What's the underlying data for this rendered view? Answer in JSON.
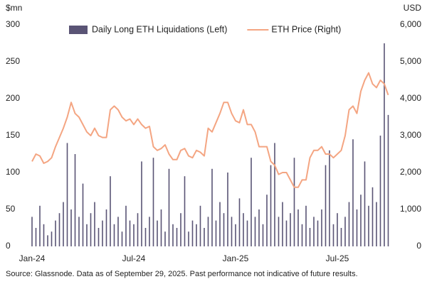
{
  "chart_data": {
    "type": "bar",
    "y_label": "$mn",
    "y2_label": "USD",
    "source": "Source: Glassnode. Data as of September 29, 2025. Past performance not indicative of future results.",
    "categories": [
      "Jan-24",
      null,
      null,
      null,
      null,
      null,
      null,
      null,
      null,
      null,
      null,
      null,
      null,
      null,
      null,
      null,
      null,
      null,
      null,
      null,
      null,
      null,
      null,
      null,
      null,
      null,
      "Jul-24",
      null,
      null,
      null,
      null,
      null,
      null,
      null,
      null,
      null,
      null,
      null,
      null,
      null,
      null,
      null,
      null,
      null,
      null,
      null,
      null,
      null,
      null,
      null,
      null,
      null,
      "Jan-25",
      null,
      null,
      null,
      null,
      null,
      null,
      null,
      null,
      null,
      null,
      null,
      null,
      null,
      null,
      null,
      null,
      null,
      null,
      null,
      null,
      null,
      null,
      null,
      null,
      null,
      "Jul-25",
      null,
      null,
      null,
      null,
      null,
      null,
      null,
      null,
      null,
      null,
      null,
      null,
      null
    ],
    "series": [
      {
        "name": "Daily Long ETH Liquidations (Left)",
        "type": "bar",
        "color": "#5a5475",
        "values": [
          40,
          25,
          55,
          30,
          15,
          20,
          35,
          45,
          60,
          140,
          50,
          125,
          40,
          85,
          30,
          45,
          60,
          25,
          35,
          50,
          95,
          30,
          40,
          20,
          55,
          35,
          30,
          45,
          115,
          25,
          40,
          120,
          35,
          50,
          20,
          105,
          30,
          25,
          45,
          95,
          20,
          35,
          30,
          55,
          25,
          40,
          105,
          35,
          60,
          45,
          100,
          40,
          30,
          65,
          45,
          35,
          120,
          40,
          50,
          30,
          70,
          110,
          140,
          40,
          60,
          35,
          45,
          120,
          50,
          30,
          55,
          25,
          40,
          35,
          50,
          110,
          130,
          30,
          45,
          25,
          40,
          60,
          145,
          50,
          70,
          115,
          55,
          80,
          60,
          150,
          275,
          178
        ]
      },
      {
        "name": "ETH Price (Right)",
        "type": "line",
        "axis": "y2",
        "color": "#f4a582",
        "values": [
          2300,
          2500,
          2450,
          2250,
          2300,
          2400,
          2700,
          2950,
          3200,
          3500,
          3900,
          3600,
          3500,
          3300,
          3100,
          3000,
          3200,
          3000,
          2950,
          2950,
          3700,
          3800,
          3700,
          3500,
          3400,
          3450,
          3300,
          3450,
          3300,
          3200,
          3250,
          2700,
          2600,
          2650,
          2750,
          2500,
          2350,
          2350,
          2600,
          2650,
          2450,
          2400,
          2600,
          2550,
          2450,
          3200,
          3100,
          3350,
          3600,
          3900,
          3900,
          3600,
          3400,
          3350,
          3700,
          3300,
          3300,
          3100,
          2700,
          2700,
          2700,
          2300,
          2200,
          1950,
          2000,
          2000,
          1800,
          1600,
          1600,
          1800,
          1800,
          2400,
          2600,
          2600,
          2700,
          2500,
          2500,
          2400,
          2500,
          2600,
          3000,
          3700,
          3800,
          3600,
          4200,
          4500,
          4700,
          4400,
          4300,
          4500,
          4400,
          4100
        ]
      }
    ],
    "ylim": [
      0,
      300
    ],
    "yticks": [
      0,
      50,
      100,
      150,
      200,
      250,
      300
    ],
    "y2lim": [
      0,
      6000
    ],
    "y2ticks": [
      0,
      {
        "value": 1000,
        "label": "1,000"
      },
      {
        "value": 2000,
        "label": "2,000"
      },
      {
        "value": 3000,
        "label": "3,000"
      },
      {
        "value": 4000,
        "label": "4,000"
      },
      {
        "value": 5000,
        "label": "5,000"
      },
      {
        "value": 6000,
        "label": "6,000"
      }
    ],
    "grid": false
  }
}
